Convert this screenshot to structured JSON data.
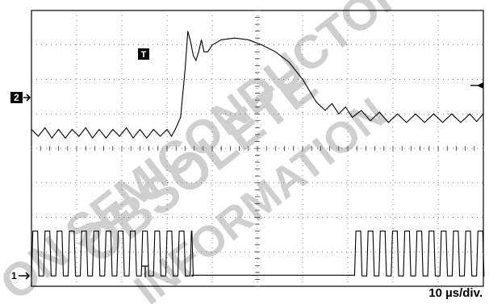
{
  "watermark": {
    "lines": [
      "OBSOLETE",
      "ON SEMICONDUCTOR",
      "INFORMATION"
    ],
    "color": "#cfcfcf"
  },
  "chart_data": {
    "type": "line",
    "timebase_label": "10 µs/div.",
    "grid": true,
    "divisions": {
      "x": 10,
      "y": 8
    },
    "x_range_div": [
      0,
      10
    ],
    "y_range_div": [
      0,
      8
    ],
    "channels": [
      {
        "marker": "2",
        "reference_level_div": 6.0,
        "points": [
          [
            0.0,
            4.55
          ],
          [
            0.15,
            4.35
          ],
          [
            0.3,
            4.6
          ],
          [
            0.45,
            4.3
          ],
          [
            0.6,
            4.55
          ],
          [
            0.75,
            4.3
          ],
          [
            0.9,
            4.55
          ],
          [
            1.05,
            4.35
          ],
          [
            1.2,
            4.6
          ],
          [
            1.35,
            4.3
          ],
          [
            1.5,
            4.55
          ],
          [
            1.65,
            4.3
          ],
          [
            1.8,
            4.55
          ],
          [
            1.95,
            4.35
          ],
          [
            2.1,
            4.6
          ],
          [
            2.25,
            4.3
          ],
          [
            2.4,
            4.55
          ],
          [
            2.55,
            4.3
          ],
          [
            2.7,
            4.55
          ],
          [
            2.85,
            4.35
          ],
          [
            3.0,
            4.55
          ],
          [
            3.1,
            4.35
          ],
          [
            3.2,
            4.6
          ],
          [
            3.3,
            4.9
          ],
          [
            3.4,
            6.3
          ],
          [
            3.46,
            7.4
          ],
          [
            3.52,
            7.1
          ],
          [
            3.58,
            6.7
          ],
          [
            3.64,
            6.55
          ],
          [
            3.7,
            6.8
          ],
          [
            3.76,
            7.15
          ],
          [
            3.82,
            6.8
          ],
          [
            3.9,
            6.8
          ],
          [
            4.0,
            7.0
          ],
          [
            4.2,
            7.15
          ],
          [
            4.5,
            7.2
          ],
          [
            4.8,
            7.15
          ],
          [
            5.1,
            7.0
          ],
          [
            5.4,
            6.8
          ],
          [
            5.7,
            6.5
          ],
          [
            6.0,
            6.0
          ],
          [
            6.3,
            5.35
          ],
          [
            6.5,
            5.1
          ],
          [
            6.65,
            5.3
          ],
          [
            6.8,
            5.0
          ],
          [
            6.95,
            5.2
          ],
          [
            7.1,
            4.9
          ],
          [
            7.3,
            5.1
          ],
          [
            7.5,
            4.8
          ],
          [
            7.7,
            5.05
          ],
          [
            7.9,
            4.75
          ],
          [
            8.1,
            5.0
          ],
          [
            8.3,
            4.75
          ],
          [
            8.5,
            5.0
          ],
          [
            8.7,
            4.75
          ],
          [
            8.9,
            5.0
          ],
          [
            9.1,
            4.75
          ],
          [
            9.3,
            5.0
          ],
          [
            9.5,
            4.75
          ],
          [
            9.7,
            5.0
          ],
          [
            9.85,
            4.78
          ],
          [
            10.0,
            5.0
          ]
        ]
      },
      {
        "marker": "1",
        "reference_level_div": 0.3,
        "high_level_div": 1.6,
        "low_level_div": 0.3,
        "bursts": [
          {
            "start_div": 0.0,
            "end_div": 3.55,
            "period_div": 0.27
          },
          {
            "start_div": 7.15,
            "end_div": 14.95,
            "period_div": 0.27
          }
        ],
        "gap_level_div": 0.32
      }
    ]
  }
}
